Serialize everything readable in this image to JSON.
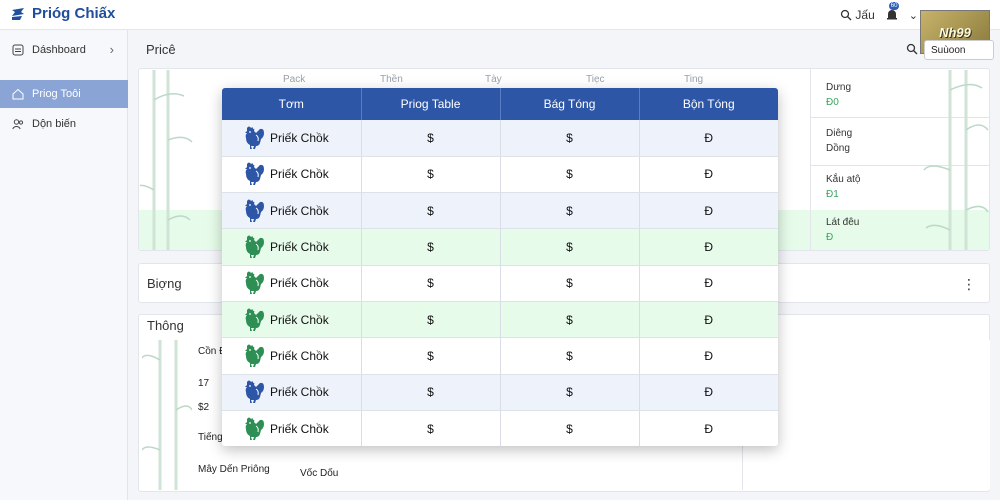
{
  "app": {
    "title": "Prióg Chiấx"
  },
  "topbar": {
    "search_label": "Jấu",
    "badge": "60",
    "logo_text": "Nh99"
  },
  "sidebar": {
    "items": [
      {
        "label": "Dáshboard",
        "icon": "dashboard-icon"
      },
      {
        "label": "Priog Toôi",
        "icon": "home-icon",
        "active": true
      },
      {
        "label": "Dộn biến",
        "icon": "users-icon"
      }
    ]
  },
  "main": {
    "price_title": "Pricê",
    "search_button": "Suùoon",
    "column_headers": [
      "Pack",
      "Thền",
      "Tày",
      "Tiẹc",
      "Ting"
    ],
    "right_panel": [
      {
        "label": "Dưng",
        "value": "Đ0"
      },
      {
        "label": "Diêng",
        "value2": "Dồng"
      },
      {
        "label": "Kắu atộ",
        "value": "Đ1"
      },
      {
        "label": "Lát đêu",
        "value": "Đ"
      }
    ],
    "bigng_title": "Biợng",
    "thong_title": "Thông",
    "thong_items": {
      "con": "Cồn Đ",
      "n17": "17",
      "s2": "$2",
      "tieng": "Tiếng",
      "may": "Mây Dến Priông",
      "voc": "Vốc Dốu"
    }
  },
  "table": {
    "headers": [
      "Tơm",
      "Priog Table",
      "Bág Tóng",
      "Bộn Tóng"
    ],
    "rows": [
      {
        "name": "Priếk Chồk",
        "c1": "$",
        "c2": "$",
        "c3": "Đ",
        "style": "blue",
        "rooster": "blue"
      },
      {
        "name": "Priếk Chồk",
        "c1": "$",
        "c2": "$",
        "c3": "Đ",
        "style": "white",
        "rooster": "blue"
      },
      {
        "name": "Priếk Chồk",
        "c1": "$",
        "c2": "$",
        "c3": "Đ",
        "style": "blue",
        "rooster": "blue"
      },
      {
        "name": "Priếk Chồk",
        "c1": "$",
        "c2": "$",
        "c3": "Đ",
        "style": "green",
        "rooster": "green"
      },
      {
        "name": "Priếk Chồk",
        "c1": "$",
        "c2": "$",
        "c3": "Đ",
        "style": "white",
        "rooster": "green"
      },
      {
        "name": "Priếk Chồk",
        "c1": "$",
        "c2": "$",
        "c3": "Đ",
        "style": "green",
        "rooster": "green"
      },
      {
        "name": "Priếk Chồk",
        "c1": "$",
        "c2": "$",
        "c3": "Đ",
        "style": "white",
        "rooster": "green"
      },
      {
        "name": "Priếk Chồk",
        "c1": "$",
        "c2": "$",
        "c3": "Đ",
        "style": "blue",
        "rooster": "blue"
      },
      {
        "name": "Priếk Chồk",
        "c1": "$",
        "c2": "$",
        "c3": "Đ",
        "style": "white",
        "rooster": "green"
      }
    ]
  },
  "colors": {
    "accent": "#2e56a6",
    "sidebar_active": "#8aa4d6",
    "green_row": "#e6fbe9",
    "blue_row": "#eef2fb",
    "value_green": "#3aa55f"
  }
}
